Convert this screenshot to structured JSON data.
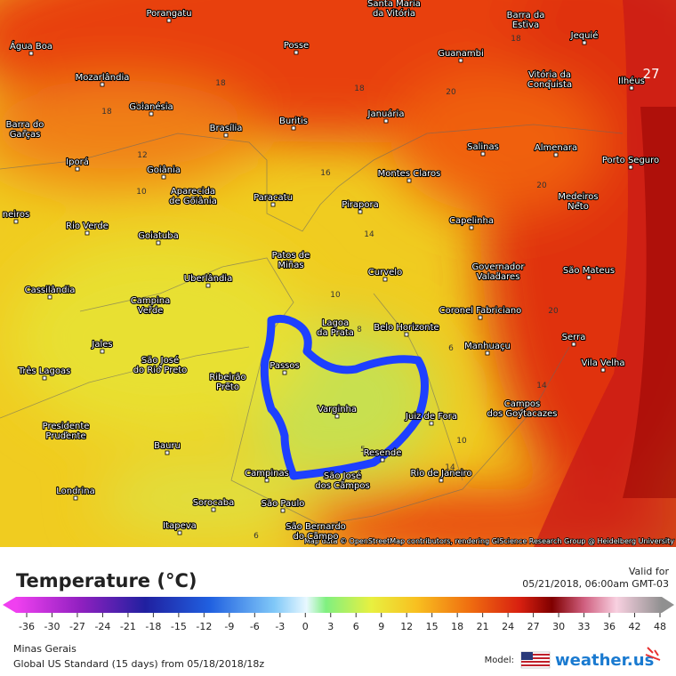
{
  "map": {
    "cities": [
      [
        "Porangatu"
      ],
      [
        "Santa Maria",
        "da Vitória"
      ],
      [
        "Barra da",
        "Estiva"
      ],
      [
        "Jequié"
      ],
      [
        "Água Boa"
      ],
      [
        "Posse"
      ],
      [
        "Guanambi"
      ],
      [
        "Mozarlândia"
      ],
      [
        "Vitória da",
        "Conquista"
      ],
      [
        "Ilhéus"
      ],
      [
        "Goianésia"
      ],
      [
        "Januária"
      ],
      [
        "Barra do",
        "Garças"
      ],
      [
        "Brasília"
      ],
      [
        "Buritis"
      ],
      [
        "Salinas"
      ],
      [
        "Almenara"
      ],
      [
        "Iporá"
      ],
      [
        "Goiânia"
      ],
      [
        "Montes Claros"
      ],
      [
        "Porto Seguro"
      ],
      [
        "Aparecida",
        "de Goiânia"
      ],
      [
        "Paracatu"
      ],
      [
        "Pirapora"
      ],
      [
        "Medeiros",
        "Neto"
      ],
      [
        "neiros"
      ],
      [
        "Rio Verde"
      ],
      [
        "Capelinha"
      ],
      [
        "Goiatuba"
      ],
      [
        "Patos de",
        "Minas"
      ],
      [
        "Curvelo"
      ],
      [
        "Governador",
        "Valadares"
      ],
      [
        "São Mateus"
      ],
      [
        "Uberlândia"
      ],
      [
        "Cassilândia"
      ],
      [
        "Campina",
        "Verde"
      ],
      [
        "Coronel Fabriciano"
      ],
      [
        "Lagoa",
        "da Prata"
      ],
      [
        "Belo Horizonte"
      ],
      [
        "Serra"
      ],
      [
        "Jales"
      ],
      [
        "Manhuaçu"
      ],
      [
        "Vila Velha"
      ],
      [
        "São José",
        "do Rio Preto"
      ],
      [
        "Passos"
      ],
      [
        "Ribeirão",
        "Preto"
      ],
      [
        "Três Lagoas"
      ],
      [
        "Varginha"
      ],
      [
        "Juiz de Fora"
      ],
      [
        "Campos",
        "dos Goytacazes"
      ],
      [
        "Presidente",
        "Prudente"
      ],
      [
        "Bauru"
      ],
      [
        "Resende"
      ],
      [
        "Campinas"
      ],
      [
        "São José",
        "dos Campos"
      ],
      [
        "Rio de Janeiro"
      ],
      [
        "Londrina"
      ],
      [
        "Sorocaba"
      ],
      [
        "São Paulo"
      ],
      [
        "Itapeva"
      ],
      [
        "São Bernardo",
        "do Campo"
      ]
    ],
    "contour_labels": [
      18,
      18,
      16,
      18,
      20,
      18,
      12,
      10,
      16,
      14,
      10,
      8,
      6,
      20,
      20,
      14,
      10,
      14,
      6,
      27,
      5
    ],
    "attribution": "Map data © OpenStreetMap contributors, rendering GIScience Research Group @ Heidelberg University"
  },
  "legend": {
    "title": "Temperature (°C)",
    "valid_label": "Valid for",
    "valid_time": "05/21/2018, 06:00am GMT-03",
    "ticks": [
      -36,
      -30,
      -27,
      -24,
      -21,
      -18,
      -15,
      -12,
      -9,
      -6,
      -3,
      0,
      3,
      6,
      9,
      12,
      15,
      18,
      21,
      24,
      27,
      30,
      33,
      36,
      42,
      48
    ]
  },
  "footer": {
    "region": "Minas Gerais",
    "model_run": "Global US Standard (15 days) from 05/18/2018/18z",
    "model_label": "Model:",
    "brand": "weather.us"
  }
}
